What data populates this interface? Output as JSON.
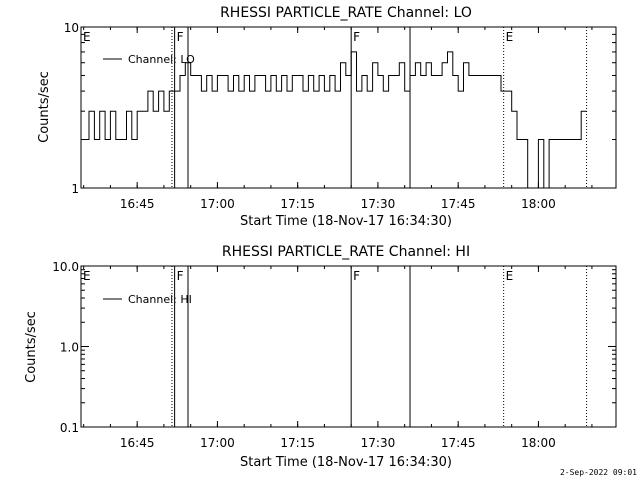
{
  "footer": {
    "timestamp": "2-Sep-2022 09:01"
  },
  "chart_data": [
    {
      "type": "line",
      "title": "RHESSI PARTICLE_RATE Channel: LO",
      "xlabel": "Start Time (18-Nov-17 16:34:30)",
      "ylabel": "Counts/sec",
      "yscale": "log",
      "ylim": [
        1,
        10
      ],
      "xlim": [
        "16:34:30",
        "18:14:30"
      ],
      "x_ticks": [
        "16:45",
        "17:00",
        "17:15",
        "17:30",
        "17:45",
        "18:00"
      ],
      "y_ticks": [
        "1",
        "10"
      ],
      "legend": {
        "label": "Channel: LO",
        "position": "top-left"
      },
      "markers": [
        {
          "label": "E",
          "time": "16:34:30",
          "style": "dotted"
        },
        {
          "label": "",
          "time": "16:51:30",
          "style": "dotted"
        },
        {
          "label": "F",
          "time": "16:52:00",
          "style": "solid"
        },
        {
          "label": "",
          "time": "16:54:30",
          "style": "solid"
        },
        {
          "label": "F",
          "time": "17:25:00",
          "style": "solid"
        },
        {
          "label": "",
          "time": "17:36:00",
          "style": "solid"
        },
        {
          "label": "E",
          "time": "17:53:30",
          "style": "dotted"
        },
        {
          "label": "",
          "time": "18:09:00",
          "style": "dotted"
        }
      ],
      "series": [
        {
          "name": "Channel: LO",
          "x": [
            "16:35:00",
            "16:36:00",
            "16:37:00",
            "16:38:00",
            "16:39:00",
            "16:40:00",
            "16:41:00",
            "16:42:00",
            "16:43:00",
            "16:44:00",
            "16:45:00",
            "16:46:00",
            "16:47:00",
            "16:48:00",
            "16:49:00",
            "16:50:00",
            "16:51:00",
            "16:52:00",
            "16:53:00",
            "16:54:00",
            "16:55:00",
            "16:56:00",
            "16:57:00",
            "16:58:00",
            "16:59:00",
            "17:00:00",
            "17:01:00",
            "17:02:00",
            "17:03:00",
            "17:04:00",
            "17:05:00",
            "17:06:00",
            "17:07:00",
            "17:08:00",
            "17:09:00",
            "17:10:00",
            "17:11:00",
            "17:12:00",
            "17:13:00",
            "17:14:00",
            "17:15:00",
            "17:16:00",
            "17:17:00",
            "17:18:00",
            "17:19:00",
            "17:20:00",
            "17:21:00",
            "17:22:00",
            "17:23:00",
            "17:24:00",
            "17:25:00",
            "17:26:00",
            "17:27:00",
            "17:28:00",
            "17:29:00",
            "17:30:00",
            "17:31:00",
            "17:32:00",
            "17:33:00",
            "17:34:00",
            "17:35:00",
            "17:36:00",
            "17:37:00",
            "17:38:00",
            "17:39:00",
            "17:40:00",
            "17:41:00",
            "17:42:00",
            "17:43:00",
            "17:44:00",
            "17:45:00",
            "17:46:00",
            "17:47:00",
            "17:48:00",
            "17:49:00",
            "17:50:00",
            "17:51:00",
            "17:52:00",
            "17:53:00",
            "17:54:00",
            "17:55:00",
            "17:56:00",
            "17:57:00",
            "17:58:00",
            "17:59:00",
            "18:00:00",
            "18:01:00",
            "18:02:00",
            "18:03:00",
            "18:04:00",
            "18:05:00",
            "18:06:00",
            "18:07:00",
            "18:08:00"
          ],
          "values": [
            2,
            3,
            2,
            3,
            2,
            3,
            2,
            2,
            3,
            2,
            3,
            3,
            4,
            3,
            4,
            3,
            4,
            4,
            5,
            6,
            5,
            5,
            4,
            5,
            4,
            5,
            5,
            4,
            5,
            4,
            5,
            4,
            5,
            5,
            4,
            5,
            4,
            5,
            4,
            5,
            5,
            4,
            5,
            4,
            5,
            4,
            5,
            4,
            6,
            5,
            7,
            4,
            5,
            4,
            6,
            5,
            4,
            5,
            5,
            6,
            4,
            5,
            6,
            5,
            6,
            5,
            5,
            6,
            7,
            5,
            4,
            6,
            5,
            5,
            5,
            5,
            5,
            5,
            4,
            4,
            3,
            2,
            2,
            1,
            1,
            2,
            1,
            2,
            2,
            2,
            2,
            2,
            2,
            3
          ]
        }
      ]
    },
    {
      "type": "line",
      "title": "RHESSI PARTICLE_RATE Channel: HI",
      "xlabel": "Start Time (18-Nov-17 16:34:30)",
      "ylabel": "Counts/sec",
      "yscale": "log",
      "ylim": [
        0.1,
        10
      ],
      "xlim": [
        "16:34:30",
        "18:14:30"
      ],
      "x_ticks": [
        "16:45",
        "17:00",
        "17:15",
        "17:30",
        "17:45",
        "18:00"
      ],
      "y_ticks": [
        "0.1",
        "1.0",
        "10.0"
      ],
      "legend": {
        "label": "Channel: HI",
        "position": "top-left"
      },
      "markers": [
        {
          "label": "E",
          "time": "16:34:30",
          "style": "dotted"
        },
        {
          "label": "",
          "time": "16:51:30",
          "style": "dotted"
        },
        {
          "label": "F",
          "time": "16:52:00",
          "style": "solid"
        },
        {
          "label": "",
          "time": "16:54:30",
          "style": "solid"
        },
        {
          "label": "F",
          "time": "17:25:00",
          "style": "solid"
        },
        {
          "label": "",
          "time": "17:36:00",
          "style": "solid"
        },
        {
          "label": "E",
          "time": "17:53:30",
          "style": "dotted"
        },
        {
          "label": "",
          "time": "18:09:00",
          "style": "dotted"
        }
      ],
      "series": [
        {
          "name": "Channel: HI",
          "x": [],
          "values": []
        }
      ]
    }
  ]
}
